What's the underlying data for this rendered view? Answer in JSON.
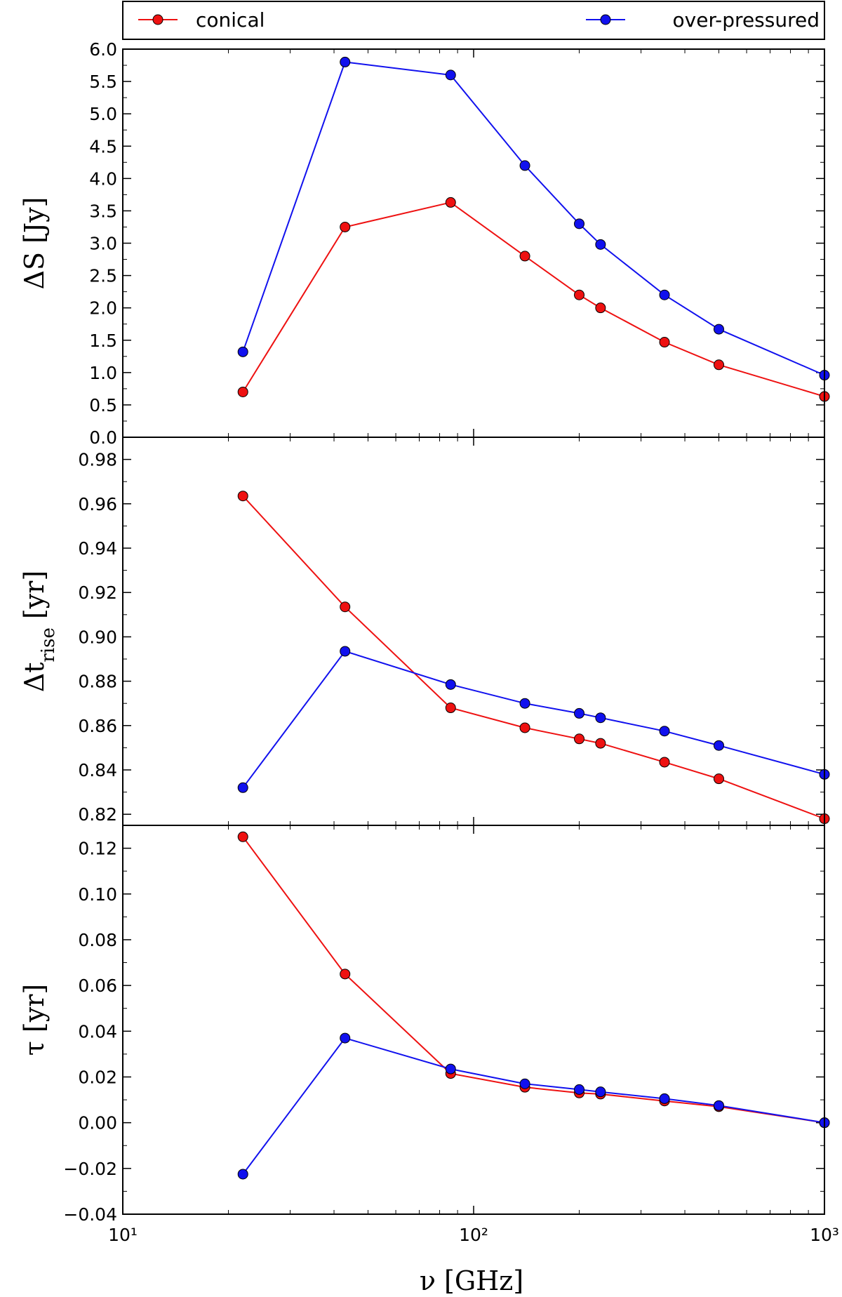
{
  "chart_data": {
    "type": "line",
    "xscale": "log",
    "xlim": [
      10,
      1000
    ],
    "xlabel": "ν [GHz]",
    "x_tick_labels": [
      "10¹",
      "10²",
      "10³"
    ],
    "x": [
      22,
      43,
      86,
      140,
      200,
      230,
      350,
      500,
      1000
    ],
    "legend": {
      "placement": "top",
      "entries": [
        {
          "name": "conical",
          "color": "#ee1111"
        },
        {
          "name": "over-pressured",
          "color": "#1111ee"
        }
      ]
    },
    "panels": [
      {
        "ylabel": "ΔS [Jy]",
        "ylim": [
          0.0,
          6.0
        ],
        "yticks": [
          "0.0",
          "0.5",
          "1.0",
          "1.5",
          "2.0",
          "2.5",
          "3.0",
          "3.5",
          "4.0",
          "4.5",
          "5.0",
          "5.5",
          "6.0"
        ],
        "series": [
          {
            "name": "conical",
            "color": "#ee1111",
            "values": [
              0.7,
              3.25,
              3.63,
              2.8,
              2.2,
              2.0,
              1.47,
              1.12,
              0.63
            ]
          },
          {
            "name": "over-pressured",
            "color": "#1111ee",
            "values": [
              1.32,
              5.8,
              5.6,
              4.2,
              3.3,
              2.98,
              2.2,
              1.67,
              0.96
            ]
          }
        ]
      },
      {
        "ylabel": "Δt_rise [yr]",
        "ylim": [
          0.815,
          0.99
        ],
        "yticks": [
          "0.82",
          "0.84",
          "0.86",
          "0.88",
          "0.90",
          "0.92",
          "0.94",
          "0.96",
          "0.98"
        ],
        "series": [
          {
            "name": "conical",
            "color": "#ee1111",
            "values": [
              0.9635,
              0.9135,
              0.868,
              0.859,
              0.854,
              0.852,
              0.8435,
              0.836,
              0.818
            ]
          },
          {
            "name": "over-pressured",
            "color": "#1111ee",
            "values": [
              0.832,
              0.8935,
              0.8785,
              0.87,
              0.8655,
              0.8635,
              0.8575,
              0.851,
              0.838
            ]
          }
        ]
      },
      {
        "ylabel": "τ [yr]",
        "ylim": [
          -0.04,
          0.13
        ],
        "yticks": [
          "−0.04",
          "−0.02",
          "0.00",
          "0.02",
          "0.04",
          "0.06",
          "0.08",
          "0.10",
          "0.12"
        ],
        "series": [
          {
            "name": "conical",
            "color": "#ee1111",
            "values": [
              0.125,
              0.065,
              0.0215,
              0.0155,
              0.013,
              0.0125,
              0.0095,
              0.007,
              0.0
            ]
          },
          {
            "name": "over-pressured",
            "color": "#1111ee",
            "values": [
              -0.0225,
              0.037,
              0.0235,
              0.017,
              0.0145,
              0.0135,
              0.0105,
              0.0075,
              0.0
            ]
          }
        ]
      }
    ]
  }
}
